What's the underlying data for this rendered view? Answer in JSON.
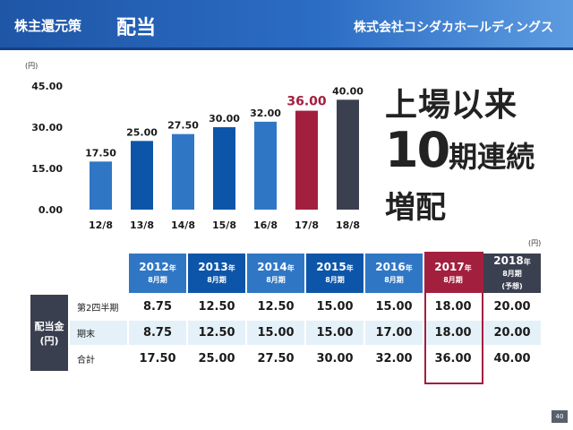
{
  "header": {
    "title": "株主還元策",
    "subtitle": "配当",
    "company": "株式会社コシダカホールディングス"
  },
  "message": {
    "line1": "上場以来",
    "line2_num": "10",
    "line2_rest": "期連続",
    "line3": "増配"
  },
  "chart_data": {
    "type": "bar",
    "unit": "(円)",
    "categories": [
      "12/8",
      "13/8",
      "14/8",
      "15/8",
      "16/8",
      "17/8",
      "18/8"
    ],
    "values": [
      17.5,
      25.0,
      27.5,
      30.0,
      32.0,
      36.0,
      40.0
    ],
    "value_labels": [
      "17.50",
      "25.00",
      "27.50",
      "30.00",
      "32.00",
      "36.00",
      "40.00"
    ],
    "yticks": [
      "0.00",
      "15.00",
      "30.00",
      "45.00"
    ],
    "ylim": [
      0,
      45
    ],
    "grid": false,
    "colors": [
      "#2f77c5",
      "#0d55a9",
      "#2f77c5",
      "#0d55a9",
      "#2f77c5",
      "#a31f3e",
      "#3b4050"
    ],
    "label_colors": [
      "#1a1a1a",
      "#1a1a1a",
      "#1a1a1a",
      "#1a1a1a",
      "#1a1a1a",
      "#a31f3e",
      "#1a1a1a"
    ]
  },
  "table": {
    "unit": "(円)",
    "columns": [
      {
        "year": "2012",
        "nen": "年",
        "period": "8月期",
        "note": ""
      },
      {
        "year": "2013",
        "nen": "年",
        "period": "8月期",
        "note": ""
      },
      {
        "year": "2014",
        "nen": "年",
        "period": "8月期",
        "note": ""
      },
      {
        "year": "2015",
        "nen": "年",
        "period": "8月期",
        "note": ""
      },
      {
        "year": "2016",
        "nen": "年",
        "period": "8月期",
        "note": ""
      },
      {
        "year": "2017",
        "nen": "年",
        "period": "8月期",
        "note": ""
      },
      {
        "year": "2018",
        "nen": "年",
        "period": "8月期",
        "note": "(予想)"
      }
    ],
    "group_label_line1": "配当金",
    "group_label_line2": "(円)",
    "rows": [
      {
        "label": "第2四半期",
        "values": [
          "8.75",
          "12.50",
          "12.50",
          "15.00",
          "15.00",
          "18.00",
          "20.00"
        ]
      },
      {
        "label": "期末",
        "values": [
          "8.75",
          "12.50",
          "15.00",
          "15.00",
          "17.00",
          "18.00",
          "20.00"
        ]
      },
      {
        "label": "合計",
        "values": [
          "17.50",
          "25.00",
          "27.50",
          "30.00",
          "32.00",
          "36.00",
          "40.00"
        ]
      }
    ]
  },
  "page_number": "40"
}
